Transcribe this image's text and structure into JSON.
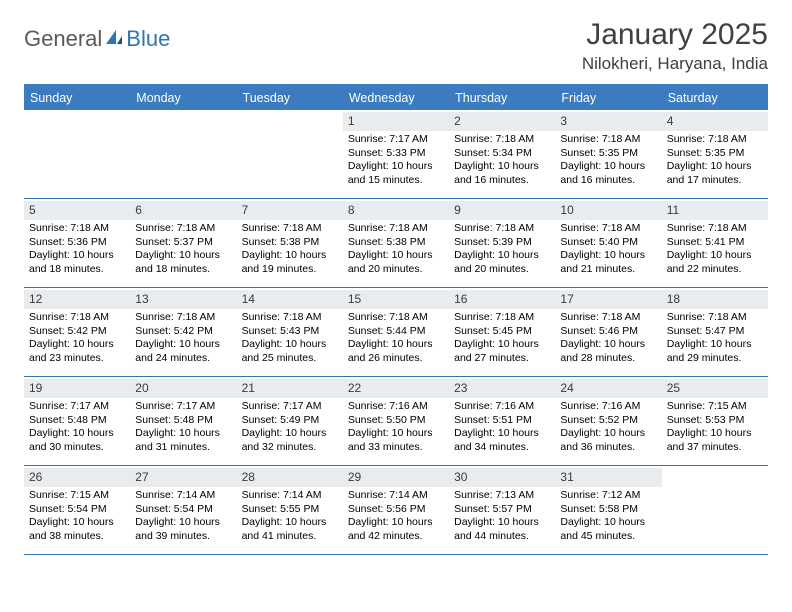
{
  "brand": {
    "name_a": "General",
    "name_b": "Blue"
  },
  "title": "January 2025",
  "location": "Nilokheri, Haryana, India",
  "colors": {
    "header_bg": "#3a7cbf",
    "header_text": "#ffffff",
    "row_border": "#2e75b6",
    "daynum_bg": "#e9ecef",
    "title_color": "#404040"
  },
  "weekdays": [
    "Sunday",
    "Monday",
    "Tuesday",
    "Wednesday",
    "Thursday",
    "Friday",
    "Saturday"
  ],
  "weeks": [
    [
      {
        "n": "",
        "sr": "",
        "ss": "",
        "dl": ""
      },
      {
        "n": "",
        "sr": "",
        "ss": "",
        "dl": ""
      },
      {
        "n": "",
        "sr": "",
        "ss": "",
        "dl": ""
      },
      {
        "n": "1",
        "sr": "7:17 AM",
        "ss": "5:33 PM",
        "dl": "10 hours and 15 minutes."
      },
      {
        "n": "2",
        "sr": "7:18 AM",
        "ss": "5:34 PM",
        "dl": "10 hours and 16 minutes."
      },
      {
        "n": "3",
        "sr": "7:18 AM",
        "ss": "5:35 PM",
        "dl": "10 hours and 16 minutes."
      },
      {
        "n": "4",
        "sr": "7:18 AM",
        "ss": "5:35 PM",
        "dl": "10 hours and 17 minutes."
      }
    ],
    [
      {
        "n": "5",
        "sr": "7:18 AM",
        "ss": "5:36 PM",
        "dl": "10 hours and 18 minutes."
      },
      {
        "n": "6",
        "sr": "7:18 AM",
        "ss": "5:37 PM",
        "dl": "10 hours and 18 minutes."
      },
      {
        "n": "7",
        "sr": "7:18 AM",
        "ss": "5:38 PM",
        "dl": "10 hours and 19 minutes."
      },
      {
        "n": "8",
        "sr": "7:18 AM",
        "ss": "5:38 PM",
        "dl": "10 hours and 20 minutes."
      },
      {
        "n": "9",
        "sr": "7:18 AM",
        "ss": "5:39 PM",
        "dl": "10 hours and 20 minutes."
      },
      {
        "n": "10",
        "sr": "7:18 AM",
        "ss": "5:40 PM",
        "dl": "10 hours and 21 minutes."
      },
      {
        "n": "11",
        "sr": "7:18 AM",
        "ss": "5:41 PM",
        "dl": "10 hours and 22 minutes."
      }
    ],
    [
      {
        "n": "12",
        "sr": "7:18 AM",
        "ss": "5:42 PM",
        "dl": "10 hours and 23 minutes."
      },
      {
        "n": "13",
        "sr": "7:18 AM",
        "ss": "5:42 PM",
        "dl": "10 hours and 24 minutes."
      },
      {
        "n": "14",
        "sr": "7:18 AM",
        "ss": "5:43 PM",
        "dl": "10 hours and 25 minutes."
      },
      {
        "n": "15",
        "sr": "7:18 AM",
        "ss": "5:44 PM",
        "dl": "10 hours and 26 minutes."
      },
      {
        "n": "16",
        "sr": "7:18 AM",
        "ss": "5:45 PM",
        "dl": "10 hours and 27 minutes."
      },
      {
        "n": "17",
        "sr": "7:18 AM",
        "ss": "5:46 PM",
        "dl": "10 hours and 28 minutes."
      },
      {
        "n": "18",
        "sr": "7:18 AM",
        "ss": "5:47 PM",
        "dl": "10 hours and 29 minutes."
      }
    ],
    [
      {
        "n": "19",
        "sr": "7:17 AM",
        "ss": "5:48 PM",
        "dl": "10 hours and 30 minutes."
      },
      {
        "n": "20",
        "sr": "7:17 AM",
        "ss": "5:48 PM",
        "dl": "10 hours and 31 minutes."
      },
      {
        "n": "21",
        "sr": "7:17 AM",
        "ss": "5:49 PM",
        "dl": "10 hours and 32 minutes."
      },
      {
        "n": "22",
        "sr": "7:16 AM",
        "ss": "5:50 PM",
        "dl": "10 hours and 33 minutes."
      },
      {
        "n": "23",
        "sr": "7:16 AM",
        "ss": "5:51 PM",
        "dl": "10 hours and 34 minutes."
      },
      {
        "n": "24",
        "sr": "7:16 AM",
        "ss": "5:52 PM",
        "dl": "10 hours and 36 minutes."
      },
      {
        "n": "25",
        "sr": "7:15 AM",
        "ss": "5:53 PM",
        "dl": "10 hours and 37 minutes."
      }
    ],
    [
      {
        "n": "26",
        "sr": "7:15 AM",
        "ss": "5:54 PM",
        "dl": "10 hours and 38 minutes."
      },
      {
        "n": "27",
        "sr": "7:14 AM",
        "ss": "5:54 PM",
        "dl": "10 hours and 39 minutes."
      },
      {
        "n": "28",
        "sr": "7:14 AM",
        "ss": "5:55 PM",
        "dl": "10 hours and 41 minutes."
      },
      {
        "n": "29",
        "sr": "7:14 AM",
        "ss": "5:56 PM",
        "dl": "10 hours and 42 minutes."
      },
      {
        "n": "30",
        "sr": "7:13 AM",
        "ss": "5:57 PM",
        "dl": "10 hours and 44 minutes."
      },
      {
        "n": "31",
        "sr": "7:12 AM",
        "ss": "5:58 PM",
        "dl": "10 hours and 45 minutes."
      },
      {
        "n": "",
        "sr": "",
        "ss": "",
        "dl": ""
      }
    ]
  ],
  "labels": {
    "sunrise": "Sunrise: ",
    "sunset": "Sunset: ",
    "daylight": "Daylight: "
  }
}
